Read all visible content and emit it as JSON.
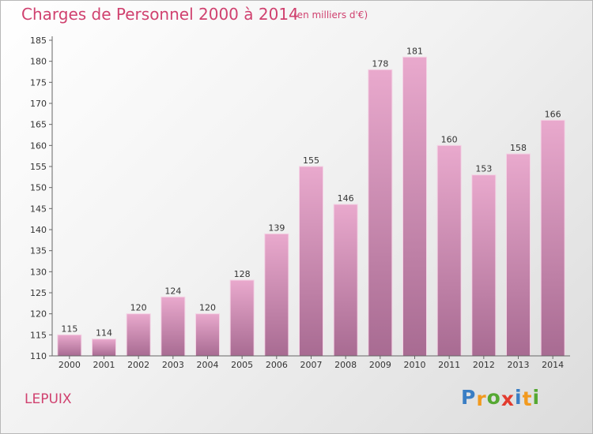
{
  "chart_data": {
    "type": "bar",
    "title": "Charges de Personnel 2000 à 2014",
    "subtitle": "(en milliers d'€)",
    "categories": [
      "2000",
      "2001",
      "2002",
      "2003",
      "2004",
      "2005",
      "2006",
      "2007",
      "2008",
      "2009",
      "2010",
      "2011",
      "2012",
      "2013",
      "2014"
    ],
    "values": [
      115,
      114,
      120,
      124,
      120,
      128,
      139,
      155,
      146,
      178,
      181,
      160,
      153,
      158,
      166
    ],
    "ylim": [
      110,
      185
    ],
    "yticks": [
      "110",
      "115",
      "120",
      "125",
      "130",
      "135",
      "140",
      "145",
      "150",
      "155",
      "160",
      "165",
      "170",
      "175",
      "180",
      "185"
    ],
    "grid": false,
    "bar_color": "#dd9cc0"
  },
  "commune": "LEPUIX",
  "logo": {
    "letters": [
      "P",
      "r",
      "o",
      "x",
      "i",
      "t",
      "i"
    ],
    "colors": [
      "#3a7ec4",
      "#f29a1f",
      "#55a832",
      "#e23b2e",
      "#3a7ec4",
      "#f29a1f",
      "#55a832"
    ]
  }
}
